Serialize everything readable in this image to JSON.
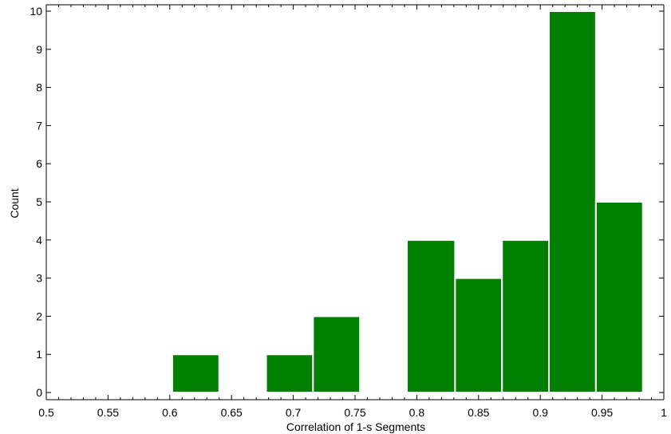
{
  "chart_data": {
    "type": "bar",
    "subtype": "histogram",
    "title": "",
    "xlabel": "Correlation of 1-s Segments",
    "ylabel": "Count",
    "xlim": [
      0.5,
      1.0
    ],
    "ylim": [
      0,
      10
    ],
    "x_ticks": [
      0.5,
      0.55,
      0.6,
      0.65,
      0.7,
      0.75,
      0.8,
      0.85,
      0.9,
      0.95,
      1.0
    ],
    "x_tick_labels": [
      "0.5",
      "0.55",
      "0.6",
      "0.65",
      "0.7",
      "0.75",
      "0.8",
      "0.85",
      "0.9",
      "0.95",
      "1"
    ],
    "y_ticks": [
      0,
      1,
      2,
      3,
      4,
      5,
      6,
      7,
      8,
      9,
      10
    ],
    "y_tick_labels": [
      "0",
      "1",
      "2",
      "3",
      "4",
      "5",
      "6",
      "7",
      "8",
      "9",
      "10"
    ],
    "bar_color": "#007f00",
    "bar_edge_color": "#ffffff",
    "grid": false,
    "legend": null,
    "bins": [
      {
        "x_start": 0.602,
        "x_end": 0.64,
        "count": 1
      },
      {
        "x_start": 0.64,
        "x_end": 0.678,
        "count": 0
      },
      {
        "x_start": 0.678,
        "x_end": 0.716,
        "count": 1
      },
      {
        "x_start": 0.716,
        "x_end": 0.754,
        "count": 2
      },
      {
        "x_start": 0.754,
        "x_end": 0.792,
        "count": 0
      },
      {
        "x_start": 0.792,
        "x_end": 0.831,
        "count": 4
      },
      {
        "x_start": 0.831,
        "x_end": 0.869,
        "count": 3
      },
      {
        "x_start": 0.869,
        "x_end": 0.907,
        "count": 4
      },
      {
        "x_start": 0.907,
        "x_end": 0.945,
        "count": 10
      },
      {
        "x_start": 0.945,
        "x_end": 0.983,
        "count": 5
      }
    ]
  }
}
